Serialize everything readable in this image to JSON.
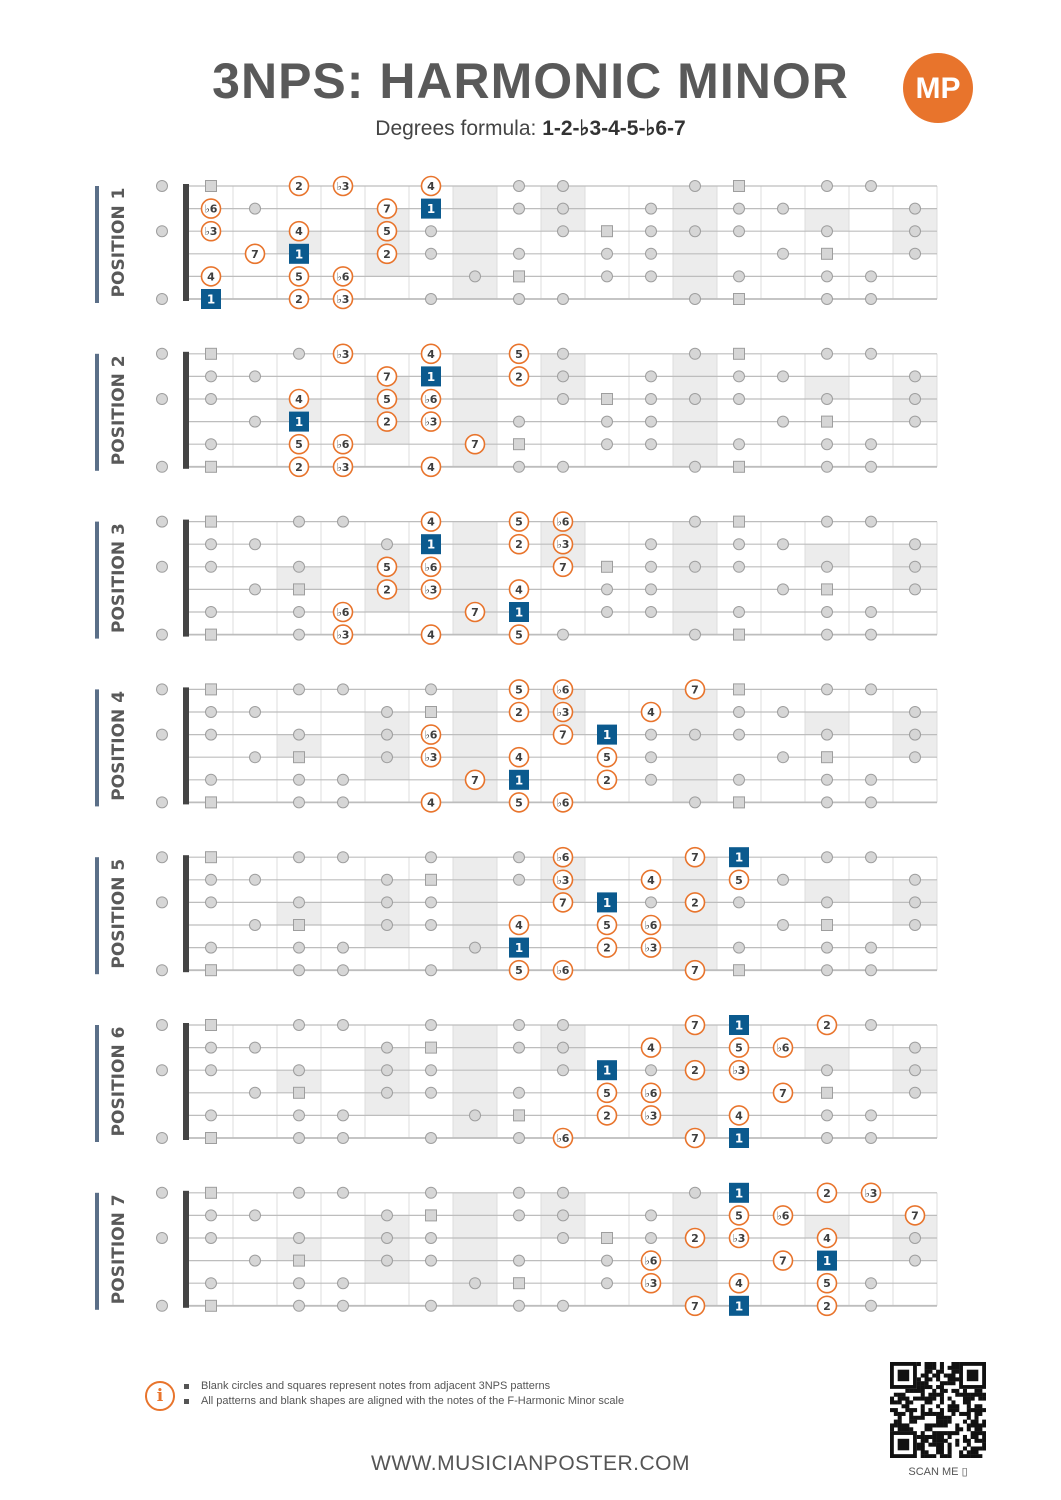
{
  "header": {
    "title": "3NPS: HARMONIC MINOR",
    "subtitle_prefix": "Degrees formula: ",
    "formula": "1-2-♭3-4-5-♭6-7",
    "logo_text": "MP"
  },
  "colors": {
    "accent": "#e8742c",
    "root": "#0b5a8e",
    "grey_marker": "#d6d6d6",
    "string": "#bdbdbd",
    "shade": "#ececec"
  },
  "positions": [
    {
      "label": "POSITION 1",
      "notes": [
        {
          "s": 1,
          "f": 3,
          "t": "2"
        },
        {
          "s": 1,
          "f": 4,
          "t": "♭3"
        },
        {
          "s": 1,
          "f": 6,
          "t": "4"
        },
        {
          "s": 2,
          "f": 1,
          "t": "♭6"
        },
        {
          "s": 2,
          "f": 5,
          "t": "7"
        },
        {
          "s": 2,
          "f": 6,
          "t": "1",
          "root": true
        },
        {
          "s": 3,
          "f": 1,
          "t": "♭3"
        },
        {
          "s": 3,
          "f": 3,
          "t": "4"
        },
        {
          "s": 3,
          "f": 5,
          "t": "5"
        },
        {
          "s": 4,
          "f": 2,
          "t": "7"
        },
        {
          "s": 4,
          "f": 3,
          "t": "1",
          "root": true
        },
        {
          "s": 4,
          "f": 5,
          "t": "2"
        },
        {
          "s": 5,
          "f": 1,
          "t": "4"
        },
        {
          "s": 5,
          "f": 3,
          "t": "5"
        },
        {
          "s": 5,
          "f": 4,
          "t": "♭6"
        },
        {
          "s": 6,
          "f": 1,
          "t": "1",
          "root": true
        },
        {
          "s": 6,
          "f": 3,
          "t": "2"
        },
        {
          "s": 6,
          "f": 4,
          "t": "♭3"
        }
      ]
    },
    {
      "label": "POSITION 2",
      "notes": [
        {
          "s": 1,
          "f": 4,
          "t": "♭3"
        },
        {
          "s": 1,
          "f": 6,
          "t": "4"
        },
        {
          "s": 1,
          "f": 8,
          "t": "5"
        },
        {
          "s": 2,
          "f": 5,
          "t": "7"
        },
        {
          "s": 2,
          "f": 6,
          "t": "1",
          "root": true
        },
        {
          "s": 2,
          "f": 8,
          "t": "2"
        },
        {
          "s": 3,
          "f": 3,
          "t": "4"
        },
        {
          "s": 3,
          "f": 5,
          "t": "5"
        },
        {
          "s": 3,
          "f": 6,
          "t": "♭6"
        },
        {
          "s": 4,
          "f": 3,
          "t": "1",
          "root": true
        },
        {
          "s": 4,
          "f": 5,
          "t": "2"
        },
        {
          "s": 4,
          "f": 6,
          "t": "♭3"
        },
        {
          "s": 5,
          "f": 3,
          "t": "5"
        },
        {
          "s": 5,
          "f": 4,
          "t": "♭6"
        },
        {
          "s": 5,
          "f": 7,
          "t": "7"
        },
        {
          "s": 6,
          "f": 3,
          "t": "2"
        },
        {
          "s": 6,
          "f": 4,
          "t": "♭3"
        },
        {
          "s": 6,
          "f": 6,
          "t": "4"
        }
      ]
    },
    {
      "label": "POSITION 3",
      "notes": [
        {
          "s": 1,
          "f": 6,
          "t": "4"
        },
        {
          "s": 1,
          "f": 8,
          "t": "5"
        },
        {
          "s": 1,
          "f": 9,
          "t": "♭6"
        },
        {
          "s": 2,
          "f": 6,
          "t": "1",
          "root": true
        },
        {
          "s": 2,
          "f": 8,
          "t": "2"
        },
        {
          "s": 2,
          "f": 9,
          "t": "♭3"
        },
        {
          "s": 3,
          "f": 5,
          "t": "5"
        },
        {
          "s": 3,
          "f": 6,
          "t": "♭6"
        },
        {
          "s": 3,
          "f": 9,
          "t": "7"
        },
        {
          "s": 4,
          "f": 5,
          "t": "2"
        },
        {
          "s": 4,
          "f": 6,
          "t": "♭3"
        },
        {
          "s": 4,
          "f": 8,
          "t": "4"
        },
        {
          "s": 5,
          "f": 4,
          "t": "♭6"
        },
        {
          "s": 5,
          "f": 7,
          "t": "7"
        },
        {
          "s": 5,
          "f": 8,
          "t": "1",
          "root": true
        },
        {
          "s": 6,
          "f": 4,
          "t": "♭3"
        },
        {
          "s": 6,
          "f": 6,
          "t": "4"
        },
        {
          "s": 6,
          "f": 8,
          "t": "5"
        }
      ]
    },
    {
      "label": "POSITION 4",
      "notes": [
        {
          "s": 1,
          "f": 8,
          "t": "5"
        },
        {
          "s": 1,
          "f": 9,
          "t": "♭6"
        },
        {
          "s": 1,
          "f": 12,
          "t": "7"
        },
        {
          "s": 2,
          "f": 8,
          "t": "2"
        },
        {
          "s": 2,
          "f": 9,
          "t": "♭3"
        },
        {
          "s": 2,
          "f": 11,
          "t": "4"
        },
        {
          "s": 3,
          "f": 6,
          "t": "♭6"
        },
        {
          "s": 3,
          "f": 9,
          "t": "7"
        },
        {
          "s": 3,
          "f": 10,
          "t": "1",
          "root": true
        },
        {
          "s": 4,
          "f": 6,
          "t": "♭3"
        },
        {
          "s": 4,
          "f": 8,
          "t": "4"
        },
        {
          "s": 4,
          "f": 10,
          "t": "5"
        },
        {
          "s": 5,
          "f": 7,
          "t": "7"
        },
        {
          "s": 5,
          "f": 8,
          "t": "1",
          "root": true
        },
        {
          "s": 5,
          "f": 10,
          "t": "2"
        },
        {
          "s": 6,
          "f": 6,
          "t": "4"
        },
        {
          "s": 6,
          "f": 8,
          "t": "5"
        },
        {
          "s": 6,
          "f": 9,
          "t": "♭6"
        }
      ]
    },
    {
      "label": "POSITION 5",
      "notes": [
        {
          "s": 1,
          "f": 9,
          "t": "♭6"
        },
        {
          "s": 1,
          "f": 12,
          "t": "7"
        },
        {
          "s": 1,
          "f": 13,
          "t": "1",
          "root": true
        },
        {
          "s": 2,
          "f": 9,
          "t": "♭3"
        },
        {
          "s": 2,
          "f": 11,
          "t": "4"
        },
        {
          "s": 2,
          "f": 13,
          "t": "5"
        },
        {
          "s": 3,
          "f": 9,
          "t": "7"
        },
        {
          "s": 3,
          "f": 10,
          "t": "1",
          "root": true
        },
        {
          "s": 3,
          "f": 12,
          "t": "2"
        },
        {
          "s": 4,
          "f": 8,
          "t": "4"
        },
        {
          "s": 4,
          "f": 10,
          "t": "5"
        },
        {
          "s": 4,
          "f": 11,
          "t": "♭6"
        },
        {
          "s": 5,
          "f": 8,
          "t": "1",
          "root": true
        },
        {
          "s": 5,
          "f": 10,
          "t": "2"
        },
        {
          "s": 5,
          "f": 11,
          "t": "♭3"
        },
        {
          "s": 6,
          "f": 8,
          "t": "5"
        },
        {
          "s": 6,
          "f": 9,
          "t": "♭6"
        },
        {
          "s": 6,
          "f": 12,
          "t": "7"
        }
      ]
    },
    {
      "label": "POSITION 6",
      "notes": [
        {
          "s": 1,
          "f": 12,
          "t": "7"
        },
        {
          "s": 1,
          "f": 13,
          "t": "1",
          "root": true
        },
        {
          "s": 1,
          "f": 15,
          "t": "2"
        },
        {
          "s": 2,
          "f": 11,
          "t": "4"
        },
        {
          "s": 2,
          "f": 13,
          "t": "5"
        },
        {
          "s": 2,
          "f": 14,
          "t": "♭6"
        },
        {
          "s": 3,
          "f": 10,
          "t": "1",
          "root": true
        },
        {
          "s": 3,
          "f": 12,
          "t": "2"
        },
        {
          "s": 3,
          "f": 13,
          "t": "♭3"
        },
        {
          "s": 4,
          "f": 10,
          "t": "5"
        },
        {
          "s": 4,
          "f": 11,
          "t": "♭6"
        },
        {
          "s": 4,
          "f": 14,
          "t": "7"
        },
        {
          "s": 5,
          "f": 10,
          "t": "2"
        },
        {
          "s": 5,
          "f": 11,
          "t": "♭3"
        },
        {
          "s": 5,
          "f": 13,
          "t": "4"
        },
        {
          "s": 6,
          "f": 9,
          "t": "♭6"
        },
        {
          "s": 6,
          "f": 12,
          "t": "7"
        },
        {
          "s": 6,
          "f": 13,
          "t": "1",
          "root": true
        }
      ]
    },
    {
      "label": "POSITION 7",
      "notes": [
        {
          "s": 1,
          "f": 13,
          "t": "1",
          "root": true
        },
        {
          "s": 1,
          "f": 15,
          "t": "2"
        },
        {
          "s": 1,
          "f": 16,
          "t": "♭3"
        },
        {
          "s": 2,
          "f": 13,
          "t": "5"
        },
        {
          "s": 2,
          "f": 14,
          "t": "♭6"
        },
        {
          "s": 2,
          "f": 17,
          "t": "7"
        },
        {
          "s": 3,
          "f": 12,
          "t": "2"
        },
        {
          "s": 3,
          "f": 13,
          "t": "♭3"
        },
        {
          "s": 3,
          "f": 15,
          "t": "4"
        },
        {
          "s": 4,
          "f": 11,
          "t": "♭6"
        },
        {
          "s": 4,
          "f": 14,
          "t": "7"
        },
        {
          "s": 4,
          "f": 15,
          "t": "1",
          "root": true
        },
        {
          "s": 5,
          "f": 11,
          "t": "♭3"
        },
        {
          "s": 5,
          "f": 13,
          "t": "4"
        },
        {
          "s": 5,
          "f": 15,
          "t": "5"
        },
        {
          "s": 6,
          "f": 12,
          "t": "7"
        },
        {
          "s": 6,
          "f": 13,
          "t": "1",
          "root": true
        },
        {
          "s": 6,
          "f": 15,
          "t": "2"
        }
      ]
    }
  ],
  "info": {
    "line1": "Blank circles and squares represent notes from adjacent 3NPS patterns",
    "line2": "All patterns and blank shapes are aligned with the notes of the F-Harmonic Minor scale"
  },
  "footer": {
    "website": "WWW.MUSICIANPOSTER.COM",
    "scan": "SCAN ME"
  }
}
